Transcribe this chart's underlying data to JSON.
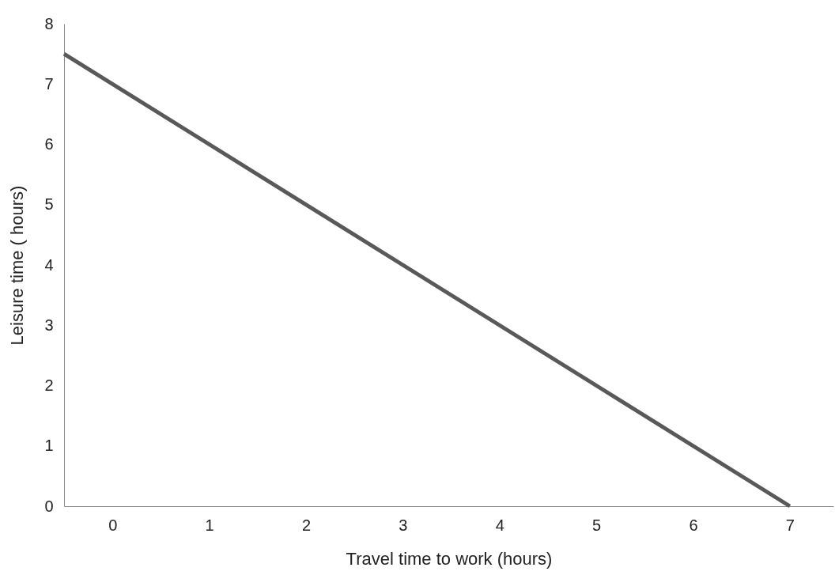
{
  "chart_data": {
    "type": "line",
    "xlabel": "Travel  time to work (hours)",
    "ylabel": "Leisure time ( hours)",
    "x": [
      -0.5,
      7
    ],
    "series": [
      {
        "color": "#595959",
        "values": [
          7.5,
          0
        ]
      }
    ],
    "xlim": [
      -0.5,
      7.45
    ],
    "xticks": [
      0,
      1,
      2,
      3,
      4,
      5,
      6,
      7
    ],
    "ylim": [
      0,
      8
    ],
    "yticks": [
      0,
      1,
      2,
      3,
      4,
      5,
      6,
      7,
      8
    ],
    "grid": false,
    "marker": "none",
    "line_style": "solid"
  }
}
